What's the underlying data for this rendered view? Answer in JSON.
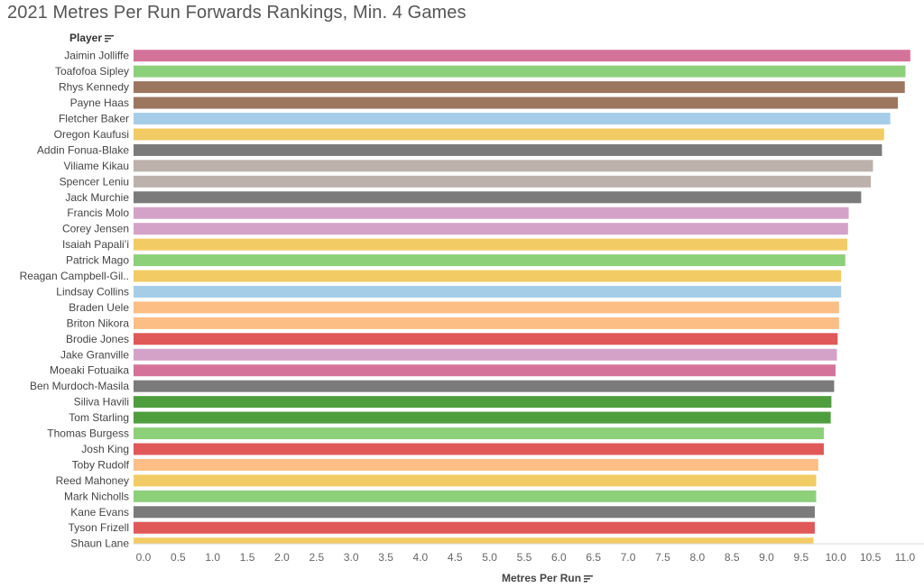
{
  "page": {
    "title": "2021 Metres Per Run Forwards Rankings, Min. 4 Games"
  },
  "headers": {
    "player": "Player"
  },
  "icons": {
    "player_sort": "sort-descending-icon",
    "axis_sort": "sort-descending-icon"
  },
  "chart_data": {
    "type": "bar",
    "orientation": "horizontal",
    "title": "2021 Metres Per Run Forwards Rankings, Min. 4 Games",
    "ylabel": "Player",
    "xlabel": "Metres Per Run",
    "xlim": [
      0,
      11.3
    ],
    "x_ticks": [
      "0.0",
      "0.5",
      "1.0",
      "1.5",
      "2.0",
      "2.5",
      "3.0",
      "3.5",
      "4.0",
      "4.5",
      "5.0",
      "5.5",
      "6.0",
      "6.5",
      "7.0",
      "7.5",
      "8.0",
      "8.5",
      "9.0",
      "9.5",
      "10.0",
      "10.5",
      "11.0"
    ],
    "grid": false,
    "categories": [
      "Jaimin Jolliffe",
      "Toafofoa Sipley",
      "Rhys Kennedy",
      "Payne Haas",
      "Fletcher Baker",
      "Oregon Kaufusi",
      "Addin Fonua-Blake",
      "Viliame Kikau",
      "Spencer Leniu",
      "Jack Murchie",
      "Francis Molo",
      "Corey Jensen",
      "Isaiah Papali’i",
      "Patrick Mago",
      "Reagan Campbell-Gil..",
      "Lindsay Collins",
      "Braden Uele",
      "Briton Nikora",
      "Brodie Jones",
      "Jake Granville",
      "Moeaki Fotuaika",
      "Ben Murdoch-Masila",
      "Siliva Havili",
      "Tom Starling",
      "Thomas Burgess",
      "Josh King",
      "Toby Rudolf",
      "Reed Mahoney",
      "Mark Nicholls",
      "Kane Evans",
      "Tyson Frizell",
      "Shaun Lane"
    ],
    "values": [
      11.22,
      11.15,
      11.14,
      11.04,
      10.93,
      10.84,
      10.81,
      10.68,
      10.65,
      10.51,
      10.33,
      10.32,
      10.31,
      10.28,
      10.22,
      10.22,
      10.19,
      10.19,
      10.17,
      10.16,
      10.14,
      10.12,
      10.08,
      10.07,
      9.97,
      9.97,
      9.89,
      9.86,
      9.86,
      9.84,
      9.84,
      9.82
    ],
    "colors": [
      "#D4739A",
      "#8DD07A",
      "#9D7660",
      "#9D7660",
      "#A6CDE8",
      "#F2CB64",
      "#7B7B7B",
      "#BCB1AB",
      "#BCB1AB",
      "#7B7B7B",
      "#D4A2C9",
      "#D4A2C9",
      "#F2CB64",
      "#8DD07A",
      "#F2CB64",
      "#A6CDE8",
      "#FDBE85",
      "#FDBE85",
      "#E05858",
      "#D4A2C9",
      "#D4739A",
      "#7B7B7B",
      "#4E9E3E",
      "#4E9E3E",
      "#8DD07A",
      "#E05858",
      "#FDBE85",
      "#F2CB64",
      "#8DD07A",
      "#7B7B7B",
      "#E05858",
      "#F2CB64"
    ]
  }
}
